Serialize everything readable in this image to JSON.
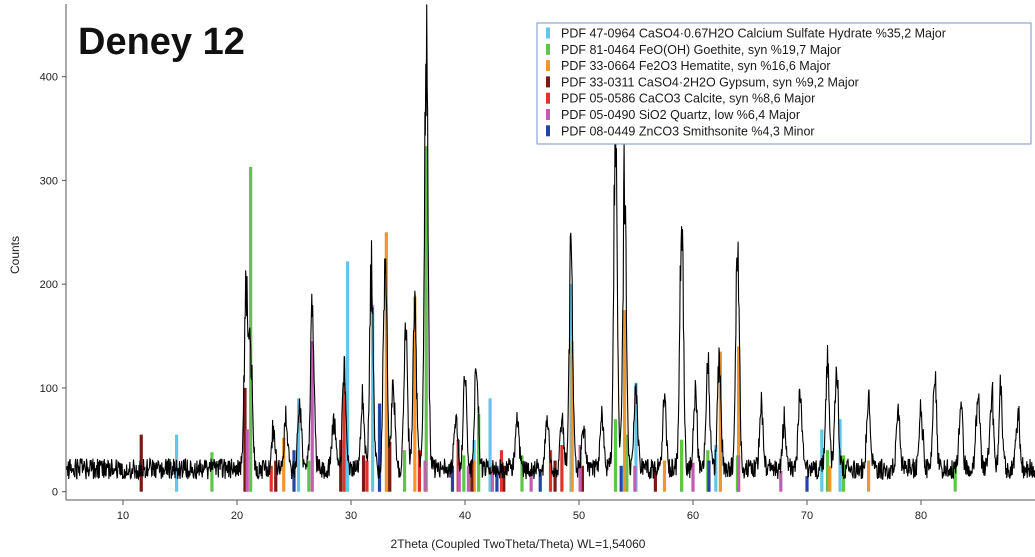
{
  "chart_data": {
    "type": "line",
    "title": "Deney 12",
    "xlabel": "2Theta (Coupled TwoTheta/Theta) WL=1,54060",
    "ylabel": "Counts",
    "xlim": [
      5,
      90
    ],
    "ylim": [
      -8,
      470
    ],
    "x_ticks": [
      10,
      20,
      30,
      40,
      50,
      60,
      70,
      80
    ],
    "y_ticks": [
      0,
      100,
      200,
      300,
      400
    ],
    "grid": false,
    "legend_position": "top-right",
    "pattern": {
      "name": "",
      "color": "#000000",
      "background_level": 12,
      "noise_amplitude": 20,
      "peaks": [
        {
          "x": 20.8,
          "y": 170
        },
        {
          "x": 21.2,
          "y": 115
        },
        {
          "x": 23.2,
          "y": 42
        },
        {
          "x": 24.3,
          "y": 50
        },
        {
          "x": 25.5,
          "y": 65
        },
        {
          "x": 26.6,
          "y": 165
        },
        {
          "x": 28.5,
          "y": 48
        },
        {
          "x": 29.4,
          "y": 100
        },
        {
          "x": 31.0,
          "y": 75
        },
        {
          "x": 31.8,
          "y": 200
        },
        {
          "x": 33.0,
          "y": 205
        },
        {
          "x": 33.7,
          "y": 80
        },
        {
          "x": 34.8,
          "y": 140
        },
        {
          "x": 35.6,
          "y": 150
        },
        {
          "x": 36.6,
          "y": 430
        },
        {
          "x": 39.2,
          "y": 55
        },
        {
          "x": 40.0,
          "y": 90
        },
        {
          "x": 41.0,
          "y": 115
        },
        {
          "x": 44.6,
          "y": 48
        },
        {
          "x": 47.2,
          "y": 50
        },
        {
          "x": 48.5,
          "y": 45
        },
        {
          "x": 49.3,
          "y": 210
        },
        {
          "x": 50.4,
          "y": 40
        },
        {
          "x": 52.0,
          "y": 55
        },
        {
          "x": 53.2,
          "y": 335
        },
        {
          "x": 54.0,
          "y": 285
        },
        {
          "x": 55.0,
          "y": 80
        },
        {
          "x": 57.5,
          "y": 65
        },
        {
          "x": 59.0,
          "y": 250
        },
        {
          "x": 60.2,
          "y": 75
        },
        {
          "x": 61.3,
          "y": 105
        },
        {
          "x": 62.3,
          "y": 110
        },
        {
          "x": 63.9,
          "y": 235
        },
        {
          "x": 66.0,
          "y": 65
        },
        {
          "x": 68.0,
          "y": 45
        },
        {
          "x": 69.4,
          "y": 75
        },
        {
          "x": 71.8,
          "y": 110
        },
        {
          "x": 72.6,
          "y": 95
        },
        {
          "x": 75.4,
          "y": 70
        },
        {
          "x": 78.0,
          "y": 60
        },
        {
          "x": 80.0,
          "y": 60
        },
        {
          "x": 81.2,
          "y": 88
        },
        {
          "x": 83.5,
          "y": 60
        },
        {
          "x": 85.0,
          "y": 80
        },
        {
          "x": 86.2,
          "y": 80
        },
        {
          "x": 87.0,
          "y": 75
        },
        {
          "x": 88.5,
          "y": 55
        }
      ]
    },
    "series": [
      {
        "name": "PDF 47-0964 CaSO4·0.67H2O Calcium Sulfate Hydrate %35,2 Major",
        "color": "#63c5e8",
        "x": [
          14.7,
          25.4,
          29.7,
          31.9,
          40.8,
          42.2,
          49.3,
          55.0,
          59.0,
          62.0,
          71.3,
          72.9
        ],
        "y": [
          55,
          90,
          222,
          180,
          50,
          90,
          200,
          105,
          50,
          45,
          60,
          70
        ]
      },
      {
        "name": "PDF 81-0464 FeO(OH) Goethite, syn %19,7 Major",
        "color": "#5ec44a",
        "x": [
          17.8,
          21.2,
          26.3,
          33.2,
          34.7,
          36.6,
          39.9,
          41.2,
          45.0,
          53.2,
          54.2,
          59.0,
          61.3,
          63.9,
          71.8,
          73.2,
          83.0
        ],
        "y": [
          38,
          313,
          30,
          55,
          40,
          333,
          35,
          75,
          35,
          70,
          55,
          50,
          40,
          35,
          40,
          35,
          25
        ]
      },
      {
        "name": "PDF 33-0664 Fe2O3 Hematite, syn %16,6 Major",
        "color": "#f0962c",
        "x": [
          24.1,
          33.1,
          35.6,
          40.8,
          49.4,
          54.0,
          57.5,
          62.4,
          64.0,
          72.0,
          75.4
        ],
        "y": [
          52,
          250,
          188,
          30,
          145,
          175,
          30,
          135,
          140,
          25,
          30
        ]
      },
      {
        "name": "PDF 33-0311 CaSO4·2H2O Gypsum, syn %9,2 Major",
        "color": "#7a1a14",
        "x": [
          11.6,
          20.7,
          23.4,
          29.1,
          31.1,
          33.4,
          40.6,
          43.4,
          47.9,
          50.3,
          56.7
        ],
        "y": [
          55,
          100,
          30,
          50,
          35,
          48,
          30,
          25,
          30,
          25,
          20
        ]
      },
      {
        "name": "PDF 05-0586 CaCO3 Calcite, syn %8,6 Major",
        "color": "#e0342a",
        "x": [
          23.0,
          29.4,
          31.4,
          36.0,
          39.4,
          43.2,
          47.5,
          48.5
        ],
        "y": [
          25,
          105,
          30,
          40,
          50,
          40,
          40,
          45
        ]
      },
      {
        "name": "PDF 05-0490 SiO2 Quartz, low %6,4 Major",
        "color": "#c65bb4",
        "x": [
          20.9,
          26.6,
          36.5,
          39.5,
          40.3,
          42.4,
          45.8,
          50.1,
          54.9,
          60.0,
          64.0,
          67.7
        ],
        "y": [
          60,
          145,
          30,
          25,
          25,
          25,
          20,
          45,
          25,
          28,
          35,
          20
        ]
      },
      {
        "name": "PDF 08-0449 ZnCO3 Smithsonite %4,3 Minor",
        "color": "#2346a6",
        "x": [
          25.0,
          32.5,
          38.9,
          42.8,
          46.6,
          53.7,
          61.4,
          70.0
        ],
        "y": [
          40,
          85,
          25,
          25,
          20,
          25,
          30,
          15
        ]
      }
    ]
  }
}
